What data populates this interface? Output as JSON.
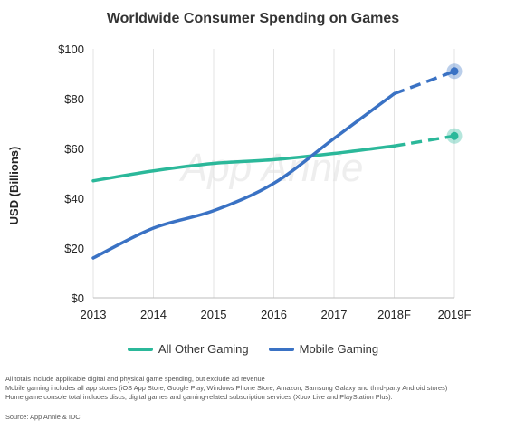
{
  "chart_data": {
    "type": "line",
    "title": "Worldwide Consumer Spending on Games",
    "ylabel": "USD (Billions)",
    "xlabel": "",
    "categories": [
      "2013",
      "2014",
      "2015",
      "2016",
      "2017",
      "2018F",
      "2019F"
    ],
    "yticks": [
      "$0",
      "$20",
      "$40",
      "$60",
      "$80",
      "$100"
    ],
    "ylim": [
      0,
      100
    ],
    "grid": "vertical",
    "legend_position": "bottom",
    "forecast_from": "2018F",
    "series": [
      {
        "name": "All Other Gaming",
        "color": "#2bb89a",
        "values": [
          47,
          51,
          54,
          55.5,
          58,
          61,
          65
        ]
      },
      {
        "name": "Mobile Gaming",
        "color": "#3a72c4",
        "values": [
          16,
          28,
          35,
          46,
          64,
          82,
          91
        ]
      }
    ]
  },
  "watermark": "App Annie",
  "notes": [
    "All totals include applicable digital and physical game spending, but exclude ad revenue",
    "Mobile gaming includes all app stores (iOS App Store, Google Play, Windows Phone Store, Amazon, Samsung Galaxy and third-party Android stores)",
    "Home game console total includes discs, digital games and gaming-related subscription services (Xbox Live and PlayStation Plus)."
  ],
  "source": "Source: App Annie & IDC"
}
